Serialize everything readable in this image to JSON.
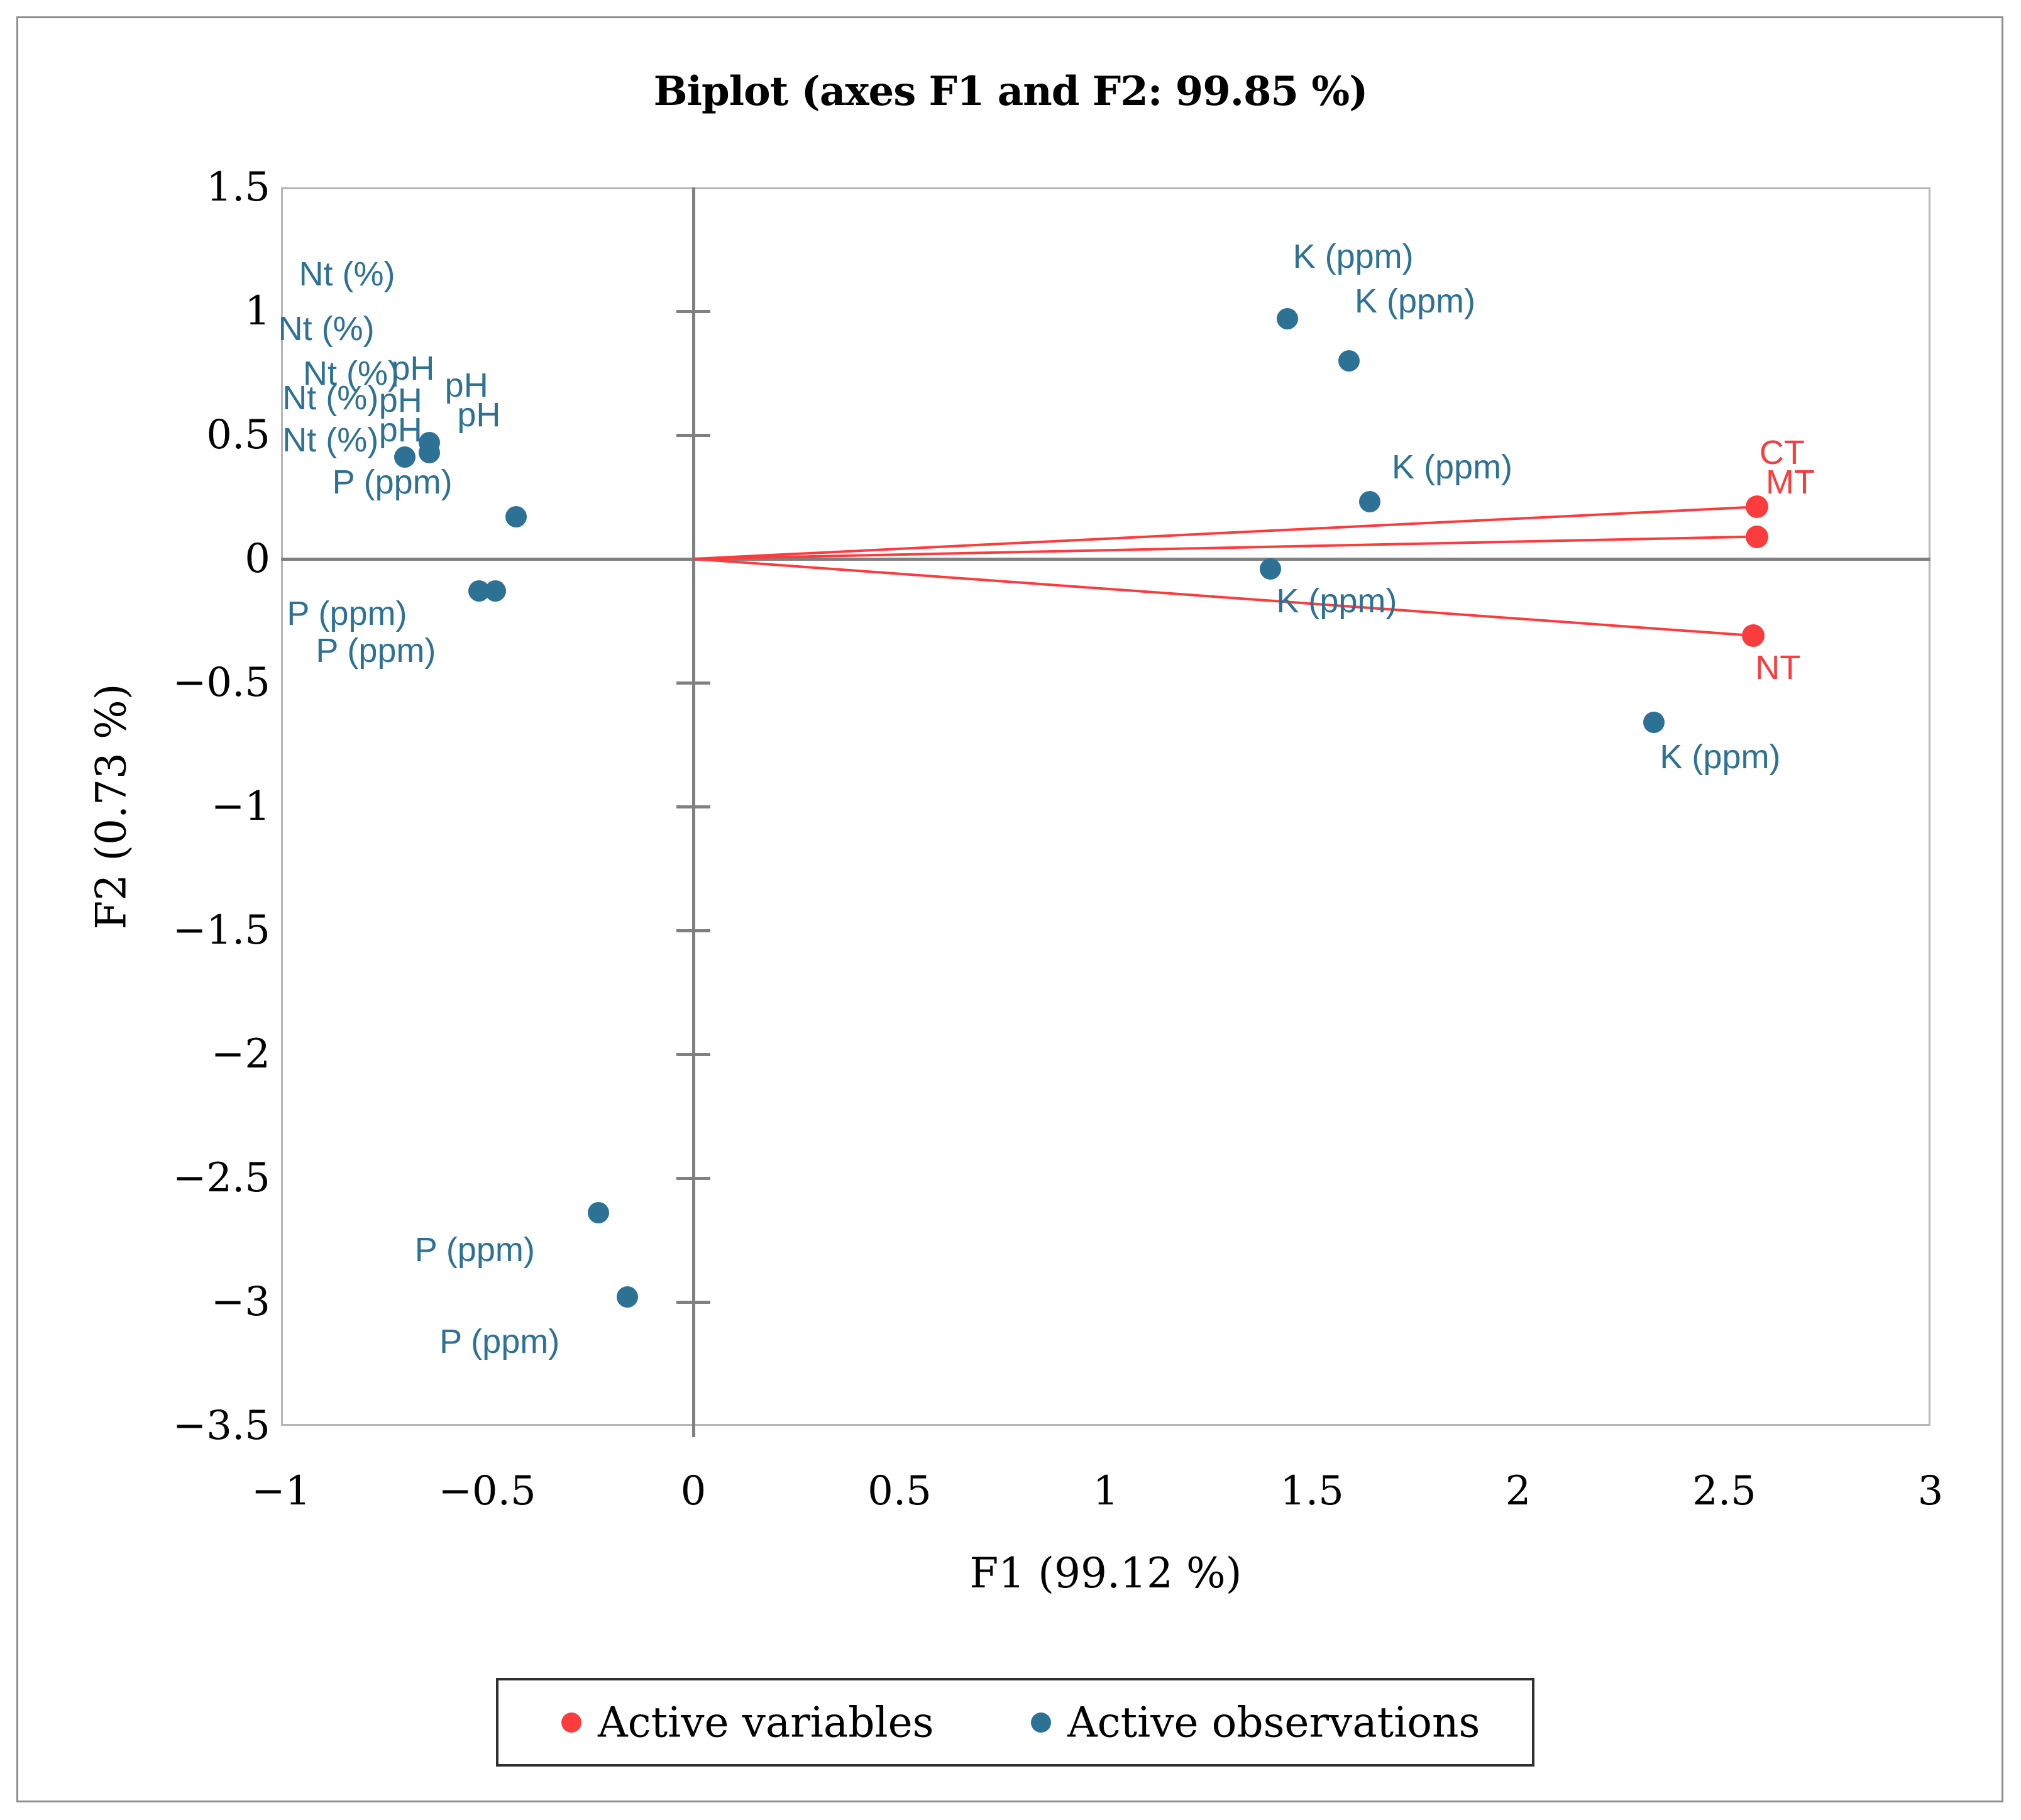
{
  "figure": {
    "title": "Biplot (axes F1 and F2: 99.85 %)",
    "x_axis_title": "F1 (99.12 %)",
    "y_axis_title": "F2 (0.73 %)"
  },
  "chart_data": {
    "type": "scatter",
    "subtype": "pca-biplot",
    "title": "Biplot (axes F1 and F2: 99.85 %)",
    "xlabel": "F1 (99.12 %)",
    "ylabel": "F2 (0.73 %)",
    "xlim": [
      -1,
      3
    ],
    "ylim": [
      -3.5,
      1.5
    ],
    "grid": false,
    "x_ticks": [
      {
        "value": -1,
        "label": "−1"
      },
      {
        "value": -0.5,
        "label": "−0.5"
      },
      {
        "value": 0,
        "label": "0"
      },
      {
        "value": 0.5,
        "label": "0.5"
      },
      {
        "value": 1,
        "label": "1"
      },
      {
        "value": 1.5,
        "label": "1.5"
      },
      {
        "value": 2,
        "label": "2"
      },
      {
        "value": 2.5,
        "label": "2.5"
      },
      {
        "value": 3,
        "label": "3"
      }
    ],
    "y_ticks": [
      {
        "value": 1.5,
        "label": "1.5"
      },
      {
        "value": 1,
        "label": "1"
      },
      {
        "value": 0.5,
        "label": "0.5"
      },
      {
        "value": 0,
        "label": "0"
      },
      {
        "value": -0.5,
        "label": "−0.5"
      },
      {
        "value": -1,
        "label": "−1"
      },
      {
        "value": -1.5,
        "label": "−1.5"
      },
      {
        "value": -2,
        "label": "−2"
      },
      {
        "value": -2.5,
        "label": "−2.5"
      },
      {
        "value": -3,
        "label": "−3"
      },
      {
        "value": -3.5,
        "label": "−3.5"
      }
    ],
    "series": [
      {
        "name": "Active variables",
        "role": "variables",
        "color": "#fb3c3c",
        "marker": "circle",
        "vectors_from_origin": true,
        "points": [
          {
            "label": "CT",
            "x": 2.58,
            "y": 0.21,
            "label_x": 2.64,
            "label_y": 0.43
          },
          {
            "label": "MT",
            "x": 2.58,
            "y": 0.09,
            "label_x": 2.66,
            "label_y": 0.31
          },
          {
            "label": "NT",
            "x": 2.57,
            "y": -0.31,
            "label_x": 2.63,
            "label_y": -0.44
          }
        ]
      },
      {
        "name": "Active observations",
        "role": "observations",
        "color": "#2d7195",
        "marker": "circle",
        "points": [
          {
            "x": -0.7,
            "y": 0.41
          },
          {
            "x": -0.64,
            "y": 0.47
          },
          {
            "x": -0.64,
            "y": 0.43
          },
          {
            "x": -0.43,
            "y": 0.17
          },
          {
            "x": -0.52,
            "y": -0.13
          },
          {
            "x": -0.48,
            "y": -0.13
          },
          {
            "x": -0.23,
            "y": -2.64
          },
          {
            "x": -0.16,
            "y": -2.98
          },
          {
            "x": 1.44,
            "y": 0.97
          },
          {
            "x": 1.59,
            "y": 0.8
          },
          {
            "x": 1.64,
            "y": 0.23
          },
          {
            "x": 1.4,
            "y": -0.04
          },
          {
            "x": 2.33,
            "y": -0.66
          }
        ],
        "point_labels": [
          {
            "text": "Nt (%)",
            "x": -0.84,
            "y": 1.15
          },
          {
            "text": "Nt (%)",
            "x": -0.89,
            "y": 0.93
          },
          {
            "text": "Nt (%)",
            "x": -0.83,
            "y": 0.75
          },
          {
            "text": "pH",
            "x": -0.68,
            "y": 0.77
          },
          {
            "text": "pH",
            "x": -0.55,
            "y": 0.7
          },
          {
            "text": "Nt (%)",
            "x": -0.88,
            "y": 0.65
          },
          {
            "text": "pH",
            "x": -0.71,
            "y": 0.64
          },
          {
            "text": "pH",
            "x": -0.52,
            "y": 0.58
          },
          {
            "text": "Nt (%)",
            "x": -0.88,
            "y": 0.48
          },
          {
            "text": "pH",
            "x": -0.71,
            "y": 0.52
          },
          {
            "text": "P (ppm)",
            "x": -0.73,
            "y": 0.31
          },
          {
            "text": "P (ppm)",
            "x": -0.84,
            "y": -0.22
          },
          {
            "text": "P (ppm)",
            "x": -0.77,
            "y": -0.37
          },
          {
            "text": "P (ppm)",
            "x": -0.53,
            "y": -2.79
          },
          {
            "text": "P (ppm)",
            "x": -0.47,
            "y": -3.16
          },
          {
            "text": "K (ppm)",
            "x": 1.6,
            "y": 1.22
          },
          {
            "text": "K (ppm)",
            "x": 1.75,
            "y": 1.04
          },
          {
            "text": "K (ppm)",
            "x": 1.84,
            "y": 0.37
          },
          {
            "text": "K (ppm)",
            "x": 1.56,
            "y": -0.17
          },
          {
            "text": "K (ppm)",
            "x": 2.49,
            "y": -0.8
          }
        ]
      }
    ],
    "legend": {
      "position": "bottom",
      "entries": [
        {
          "label": "Active variables",
          "color": "#fb3c3c"
        },
        {
          "label": "Active observations",
          "color": "#2d7195"
        }
      ]
    },
    "colors": {
      "variables": "#fb3c3c",
      "observations": "#2d7195",
      "axis_line": "#808080",
      "plot_frame": "#b6b6b6"
    }
  }
}
